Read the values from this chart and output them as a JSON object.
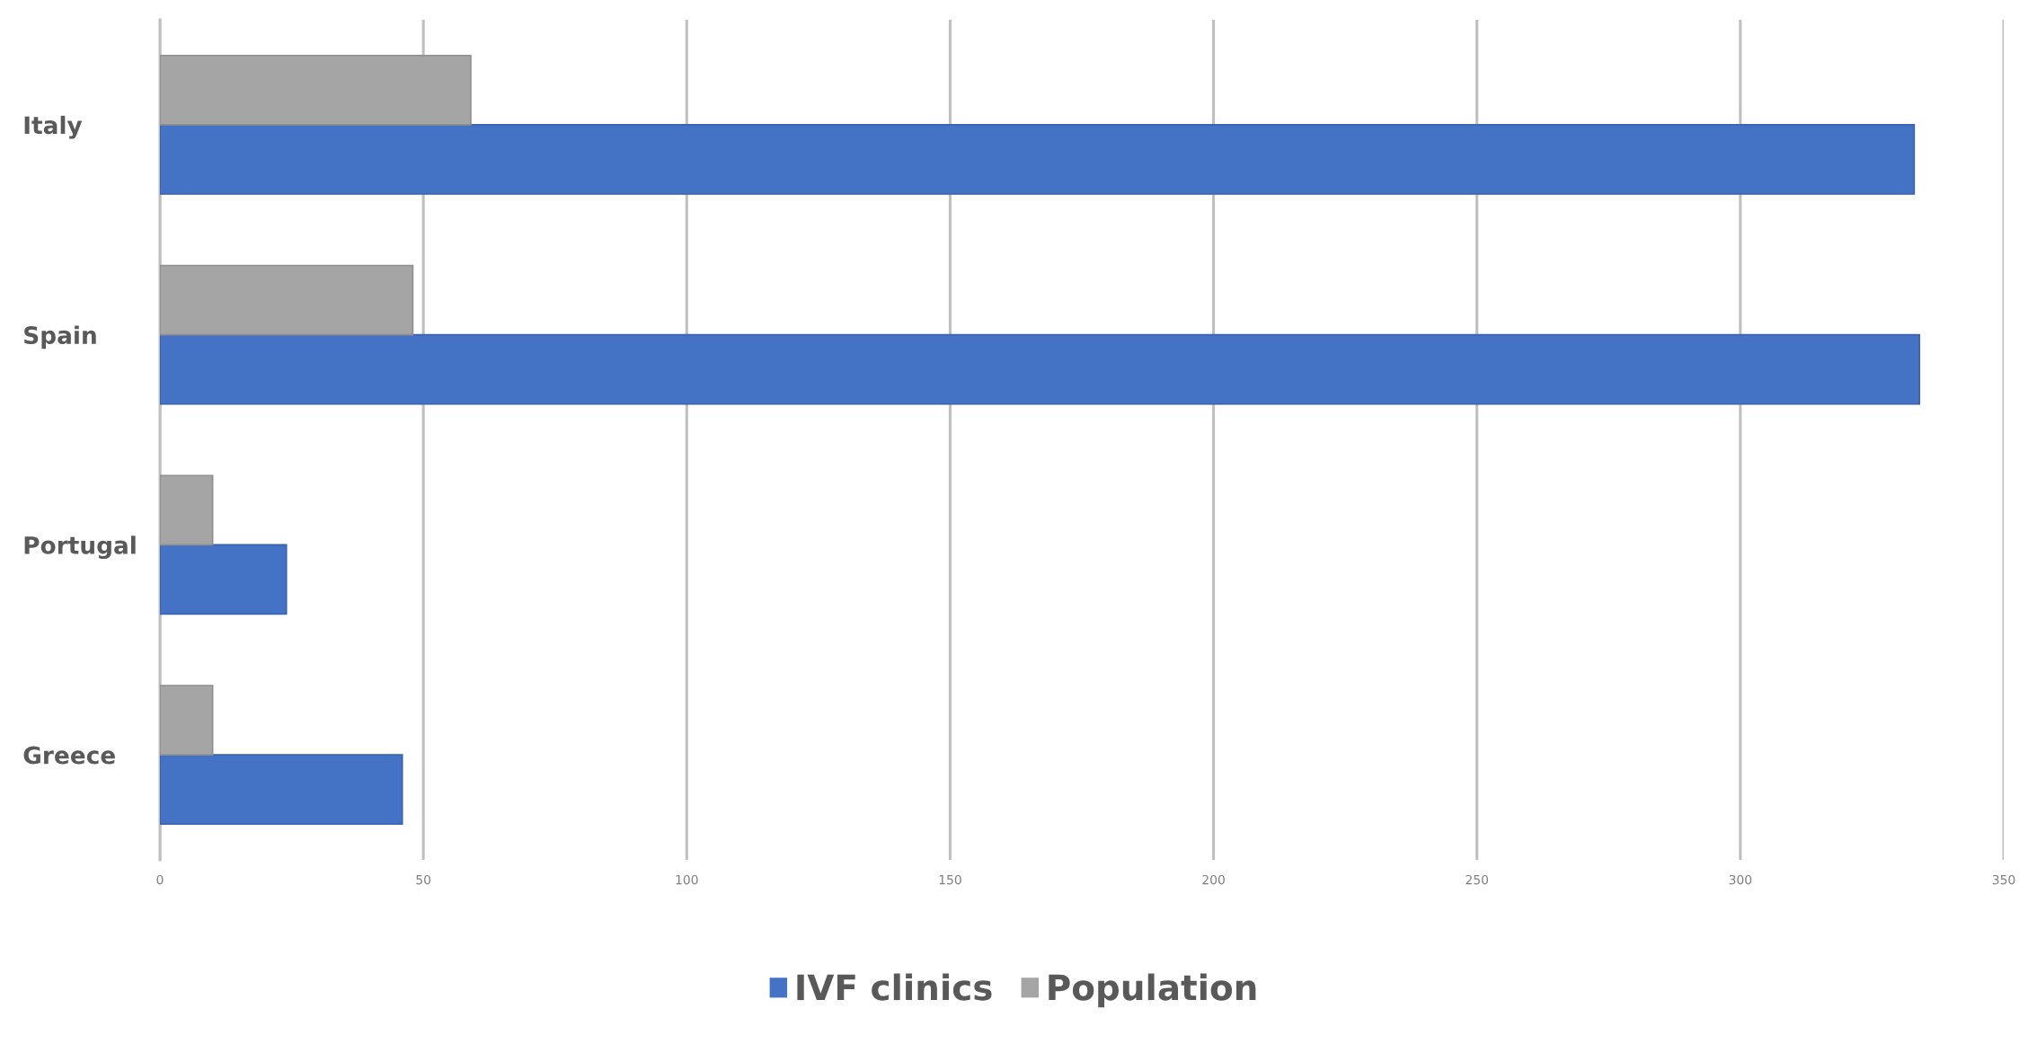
{
  "chart_data": {
    "type": "bar",
    "orientation": "horizontal",
    "categories": [
      "Italy",
      "Spain",
      "Portugal",
      "Greece"
    ],
    "series": [
      {
        "name": "IVF clinics",
        "color": "#4472c4",
        "values": [
          333,
          334,
          24,
          46
        ]
      },
      {
        "name": "Population",
        "color": "#a5a5a5",
        "values": [
          59,
          48,
          10,
          10
        ]
      }
    ],
    "xlim": [
      0,
      350
    ],
    "xticks": [
      0,
      50,
      100,
      150,
      200,
      250,
      300,
      350
    ],
    "grid": "x",
    "legend": "bottom"
  }
}
